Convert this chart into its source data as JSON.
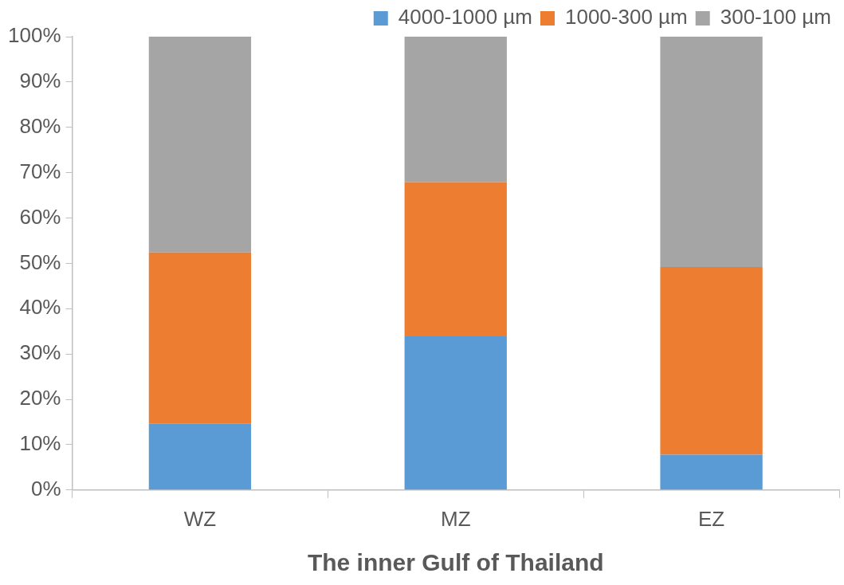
{
  "chart_data": {
    "type": "bar",
    "stacked": true,
    "xlabel": "The inner Gulf of Thailand",
    "categories": [
      "WZ",
      "MZ",
      "EZ"
    ],
    "series": [
      {
        "name": "4000-1000 µm",
        "color": "#5b9bd5",
        "values": [
          14.6,
          33.9,
          7.8
        ]
      },
      {
        "name": "1000-300 µm",
        "color": "#ed7d31",
        "values": [
          37.8,
          34.0,
          41.4
        ]
      },
      {
        "name": "300-100 µm",
        "color": "#a5a5a5",
        "values": [
          47.6,
          32.1,
          50.8
        ]
      }
    ],
    "ylim": [
      0,
      100
    ],
    "yticks": [
      {
        "value": 0,
        "label": "0%"
      },
      {
        "value": 10,
        "label": "10%"
      },
      {
        "value": 20,
        "label": "20%"
      },
      {
        "value": 30,
        "label": "30%"
      },
      {
        "value": 40,
        "label": "40%"
      },
      {
        "value": 50,
        "label": "50%"
      },
      {
        "value": 60,
        "label": "60%"
      },
      {
        "value": 70,
        "label": "70%"
      },
      {
        "value": 80,
        "label": "80%"
      },
      {
        "value": 90,
        "label": "90%"
      },
      {
        "value": 100,
        "label": "100%"
      }
    ],
    "grid": false,
    "legend": "top right"
  }
}
